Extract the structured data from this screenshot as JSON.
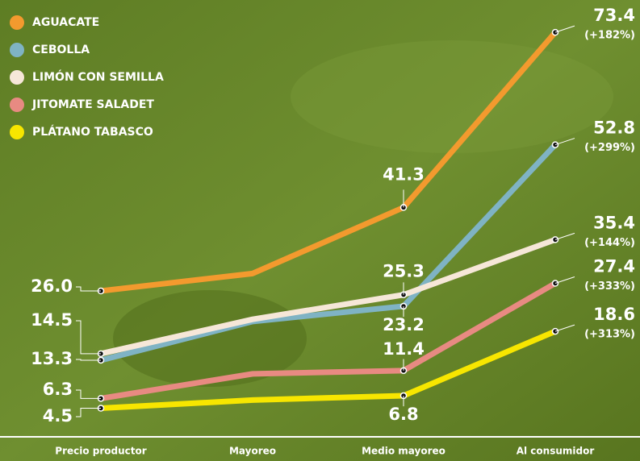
{
  "chart_data": {
    "type": "line",
    "categories": [
      "Precio productor",
      "Mayoreo",
      "Medio mayoreo",
      "Al consumidor"
    ],
    "ylim": [
      0,
      78
    ],
    "series": [
      {
        "name": "AGUACATE",
        "color": "#f39a2e",
        "values": [
          26.0,
          29.2,
          41.3,
          73.4
        ],
        "value_labels": [
          "26.0",
          null,
          "41.3",
          "73.4"
        ],
        "change_label": "(+182%)"
      },
      {
        "name": "CEBOLLA",
        "color": "#7fb3c4",
        "values": [
          13.3,
          20.4,
          23.2,
          52.8
        ],
        "value_labels": [
          "13.3",
          null,
          "23.2",
          "52.8"
        ],
        "change_label": "(+299%)"
      },
      {
        "name": "LIMÓN CON SEMILLA",
        "color": "#f6e7d8",
        "values": [
          14.5,
          20.8,
          25.3,
          35.4
        ],
        "value_labels": [
          "14.5",
          null,
          "25.3",
          "35.4"
        ],
        "change_label": "(+144%)"
      },
      {
        "name": "JITOMATE SALADET",
        "color": "#e88a82",
        "values": [
          6.3,
          10.8,
          11.4,
          27.4
        ],
        "value_labels": [
          "6.3",
          null,
          "11.4",
          "27.4"
        ],
        "change_label": "(+333%)"
      },
      {
        "name": "PLÁTANO TABASCO",
        "color": "#f7e600",
        "values": [
          4.5,
          6.0,
          6.8,
          18.6
        ],
        "value_labels": [
          "4.5",
          null,
          "6.8",
          "18.6"
        ],
        "change_label": "(+313%)"
      }
    ]
  }
}
